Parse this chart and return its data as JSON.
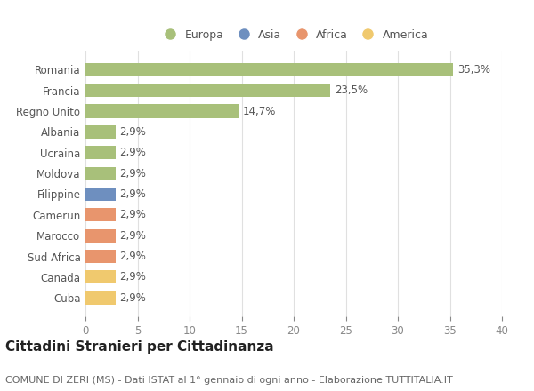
{
  "categories": [
    "Cuba",
    "Canada",
    "Sud Africa",
    "Marocco",
    "Camerun",
    "Filippine",
    "Moldova",
    "Ucraina",
    "Albania",
    "Regno Unito",
    "Francia",
    "Romania"
  ],
  "values": [
    2.9,
    2.9,
    2.9,
    2.9,
    2.9,
    2.9,
    2.9,
    2.9,
    2.9,
    14.7,
    23.5,
    35.3
  ],
  "labels": [
    "2,9%",
    "2,9%",
    "2,9%",
    "2,9%",
    "2,9%",
    "2,9%",
    "2,9%",
    "2,9%",
    "2,9%",
    "14,7%",
    "23,5%",
    "35,3%"
  ],
  "colors": [
    "#f0c96e",
    "#f0c96e",
    "#e8956d",
    "#e8956d",
    "#e8956d",
    "#6e8fbf",
    "#a8c07a",
    "#a8c07a",
    "#a8c07a",
    "#a8c07a",
    "#a8c07a",
    "#a8c07a"
  ],
  "legend_labels": [
    "Europa",
    "Asia",
    "Africa",
    "America"
  ],
  "legend_colors": [
    "#a8c07a",
    "#6e8fbf",
    "#e8956d",
    "#f0c96e"
  ],
  "title": "Cittadini Stranieri per Cittadinanza",
  "subtitle": "COMUNE DI ZERI (MS) - Dati ISTAT al 1° gennaio di ogni anno - Elaborazione TUTTITALIA.IT",
  "xlim": [
    0,
    40
  ],
  "xticks": [
    0,
    5,
    10,
    15,
    20,
    25,
    30,
    35,
    40
  ],
  "bg_color": "#ffffff",
  "grid_color": "#e0e0e0",
  "bar_height": 0.65,
  "title_fontsize": 11,
  "subtitle_fontsize": 8,
  "label_fontsize": 8.5,
  "tick_fontsize": 8.5,
  "legend_fontsize": 9
}
